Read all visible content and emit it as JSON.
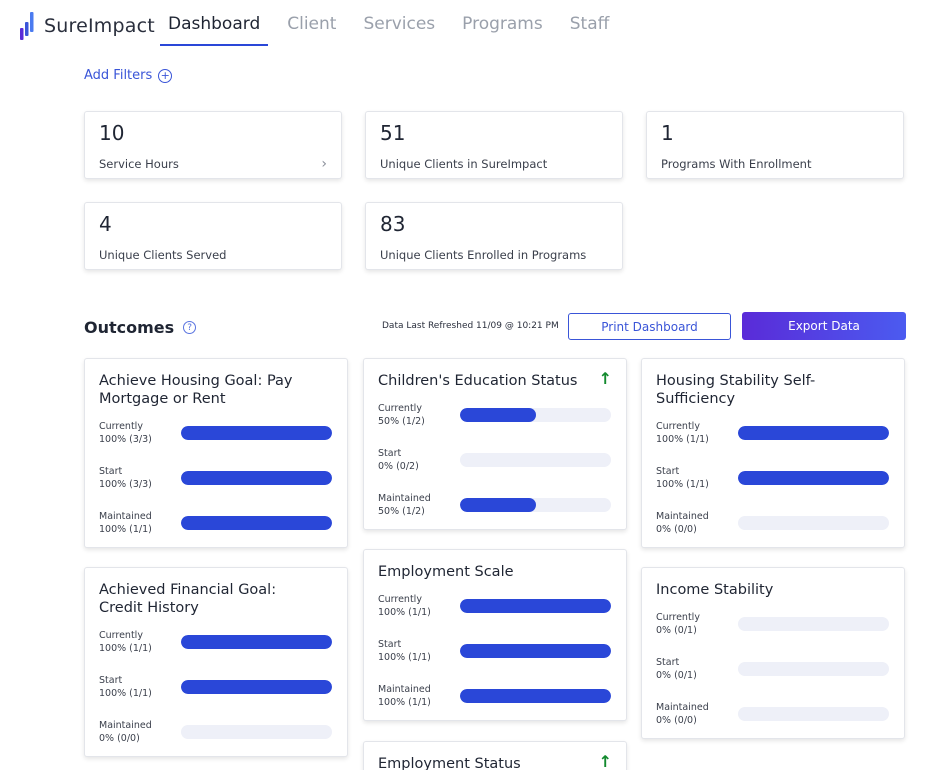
{
  "app": {
    "name": "SureImpact"
  },
  "nav": [
    "Dashboard",
    "Client",
    "Services",
    "Programs",
    "Staff"
  ],
  "filters": {
    "label": "Add Filters"
  },
  "stats": [
    {
      "value": "10",
      "label": "Service Hours",
      "has_chevron": true
    },
    {
      "value": "51",
      "label": "Unique Clients in SureImpact"
    },
    {
      "value": "1",
      "label": "Programs With Enrollment"
    },
    {
      "value": "4",
      "label": "Unique Clients Served"
    },
    {
      "value": "83",
      "label": "Unique Clients Enrolled in Programs"
    }
  ],
  "outcomes": {
    "title": "Outcomes",
    "refreshed": "Data Last Refreshed 11/09 @ 10:21 PM",
    "print_label": "Print Dashboard",
    "export_label": "Export Data"
  },
  "cards": [
    {
      "title": "Achieve Housing Goal: Pay Mortgage or Rent",
      "trend": null,
      "metrics": [
        {
          "label": "Currently",
          "value": "100% (3/3)",
          "fraction": 1.0
        },
        {
          "label": "Start",
          "value": "100% (3/3)",
          "fraction": 1.0
        },
        {
          "label": "Maintained",
          "value": "100% (1/1)",
          "fraction": 1.0
        }
      ]
    },
    {
      "title": "Children's Education Status",
      "trend": "up",
      "metrics": [
        {
          "label": "Currently",
          "value": "50% (1/2)",
          "fraction": 0.5
        },
        {
          "label": "Start",
          "value": "0% (0/2)",
          "fraction": 0
        },
        {
          "label": "Maintained",
          "value": "50% (1/2)",
          "fraction": 0.5
        }
      ]
    },
    {
      "title": "Housing Stability Self-Sufficiency",
      "trend": null,
      "metrics": [
        {
          "label": "Currently",
          "value": "100% (1/1)",
          "fraction": 1.0
        },
        {
          "label": "Start",
          "value": "100% (1/1)",
          "fraction": 1.0
        },
        {
          "label": "Maintained",
          "value": "0% (0/0)",
          "fraction": 0
        }
      ]
    },
    {
      "title": "Achieved Financial Goal: Credit History",
      "trend": null,
      "metrics": [
        {
          "label": "Currently",
          "value": "100% (1/1)",
          "fraction": 1.0
        },
        {
          "label": "Start",
          "value": "100% (1/1)",
          "fraction": 1.0
        },
        {
          "label": "Maintained",
          "value": "0% (0/0)",
          "fraction": 0
        }
      ]
    },
    {
      "title": "Employment Scale",
      "trend": null,
      "metrics": [
        {
          "label": "Currently",
          "value": "100% (1/1)",
          "fraction": 1.0
        },
        {
          "label": "Start",
          "value": "100% (1/1)",
          "fraction": 1.0
        },
        {
          "label": "Maintained",
          "value": "100% (1/1)",
          "fraction": 1.0
        }
      ]
    },
    {
      "title": "Income Stability",
      "trend": null,
      "metrics": [
        {
          "label": "Currently",
          "value": "0% (0/1)",
          "fraction": 0
        },
        {
          "label": "Start",
          "value": "0% (0/1)",
          "fraction": 0
        },
        {
          "label": "Maintained",
          "value": "0% (0/0)",
          "fraction": 0
        }
      ]
    },
    {
      "title": "Employment Status",
      "trend": "up",
      "metrics": []
    }
  ],
  "colors": {
    "accent": "#2a47d8",
    "bar_track": "#eef0f8",
    "trend_up": "#138a2e"
  },
  "icons": {
    "trend_up": "arrow-up-icon",
    "help": "question-circle-icon",
    "add": "plus-circle-icon",
    "chevron": "chevron-right-icon"
  }
}
